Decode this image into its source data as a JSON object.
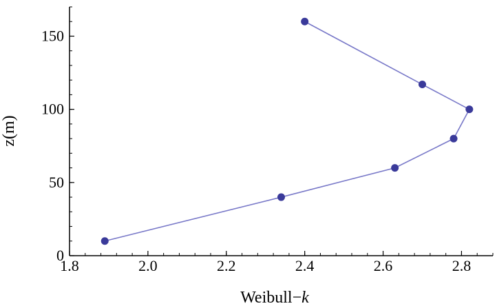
{
  "chart_data": {
    "type": "line",
    "xlabel": "Weibull",
    "xlabel_sep": "−",
    "xlabel_var": "k",
    "ylabel": "z(m)",
    "xlim": [
      1.8,
      2.88
    ],
    "ylim": [
      0,
      170
    ],
    "x_ticks": [
      1.8,
      2.0,
      2.2,
      2.4,
      2.6,
      2.8
    ],
    "x_tick_labels": [
      "1.8",
      "2.0",
      "2.2",
      "2.4",
      "2.6",
      "2.8"
    ],
    "y_ticks": [
      0,
      50,
      100,
      150
    ],
    "y_tick_labels": [
      "0",
      "50",
      "100",
      "150"
    ],
    "series": [
      {
        "color": "#3a3a9a",
        "line_color": "#7878c8",
        "x": [
          1.89,
          2.34,
          2.63,
          2.78,
          2.82,
          2.7,
          2.4
        ],
        "y": [
          10,
          40,
          60,
          80,
          100,
          117,
          160
        ]
      }
    ],
    "grid": false,
    "legend": "none"
  }
}
